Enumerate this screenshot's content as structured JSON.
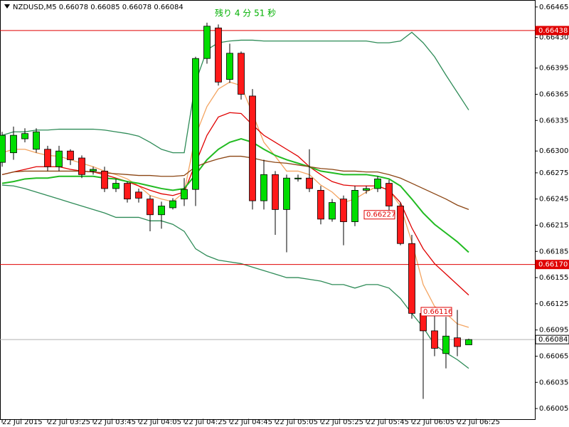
{
  "chart_data": {
    "type": "candlestick",
    "title": "NZDUSD,M5  0.66078 0.66085 0.66078 0.66084",
    "countdown": "残り 4 分 51 秒",
    "categories": [
      "22 Jul 2015",
      null,
      null,
      null,
      "22 Jul 03:25",
      null,
      null,
      null,
      "22 Jul 03:45",
      null,
      null,
      null,
      "22 Jul 04:05",
      null,
      null,
      null,
      "22 Jul 04:25",
      null,
      null,
      null,
      "22 Jul 04:45",
      null,
      null,
      null,
      "22 Jul 05:05",
      null,
      null,
      null,
      "22 Jul 05:25",
      null,
      null,
      null,
      "22 Jul 05:45",
      null,
      null,
      null,
      "22 Jul 06:05",
      null,
      null,
      null,
      "22 Jul 06:25",
      null
    ],
    "open": [
      0.66287,
      0.66298,
      0.66314,
      0.66302,
      0.66302,
      0.66282,
      0.663,
      0.66292,
      0.66277,
      0.66277,
      0.66257,
      0.66263,
      0.66253,
      0.66245,
      0.66227,
      0.66235,
      0.66245,
      0.66256,
      0.66406,
      0.66441,
      0.66382,
      0.66412,
      0.66363,
      0.66243,
      0.66273,
      0.66233,
      0.66268,
      0.66269,
      0.66255,
      0.66222,
      0.66245,
      0.66219,
      0.66255,
      0.66257,
      0.66263,
      0.66237,
      0.66194,
      0.66114,
      0.66094,
      0.66068,
      0.66086,
      0.66078
    ],
    "high": [
      0.66322,
      0.66328,
      0.66326,
      0.66326,
      0.66306,
      0.66306,
      0.66302,
      0.66295,
      0.66282,
      0.66282,
      0.66268,
      0.66265,
      0.66257,
      0.66249,
      0.66242,
      0.66246,
      0.66269,
      0.66408,
      0.66447,
      0.66445,
      0.66423,
      0.66414,
      0.66371,
      0.6629,
      0.66277,
      0.66273,
      0.66273,
      0.66302,
      0.6626,
      0.66245,
      0.66249,
      0.6626,
      0.6626,
      0.66271,
      0.66267,
      0.66241,
      0.66204,
      0.66118,
      0.66114,
      0.6611,
      0.66118,
      0.66085
    ],
    "low": [
      0.66282,
      0.6629,
      0.6631,
      0.66298,
      0.66277,
      0.66277,
      0.66284,
      0.66269,
      0.66273,
      0.66253,
      0.66253,
      0.66241,
      0.66241,
      0.66208,
      0.66211,
      0.66233,
      0.66237,
      0.66237,
      0.664,
      0.66375,
      0.66378,
      0.66359,
      0.66233,
      0.66233,
      0.66204,
      0.66184,
      0.66265,
      0.66253,
      0.66216,
      0.66219,
      0.66192,
      0.66214,
      0.66251,
      0.66253,
      0.66229,
      0.66192,
      0.66108,
      0.66016,
      0.66065,
      0.66051,
      0.66065,
      0.66078
    ],
    "close": [
      0.66318,
      0.66318,
      0.6632,
      0.66322,
      0.66282,
      0.663,
      0.6629,
      0.66273,
      0.66279,
      0.66257,
      0.66263,
      0.66245,
      0.66246,
      0.66227,
      0.66237,
      0.66243,
      0.66256,
      0.66406,
      0.66443,
      0.66379,
      0.66412,
      0.66365,
      0.66243,
      0.66273,
      0.66233,
      0.66269,
      0.66269,
      0.66257,
      0.66222,
      0.66241,
      0.66219,
      0.66255,
      0.66257,
      0.66268,
      0.66237,
      0.66194,
      0.66114,
      0.66094,
      0.66074,
      0.66088,
      0.66076,
      0.66084
    ],
    "up_color": "#00dd00",
    "down_color": "#ff1a1a",
    "lines": [
      {
        "color": "#f4a460",
        "values": [
          0.66298,
          0.66302,
          0.66302,
          0.66298,
          0.66295,
          0.66294,
          0.6629,
          0.66286,
          0.66282,
          0.66277,
          0.66273,
          0.66268,
          0.6626,
          0.66249,
          0.66245,
          0.66242,
          0.66253,
          0.66318,
          0.66351,
          0.66371,
          0.66379,
          0.66375,
          0.66343,
          0.6631,
          0.66294,
          0.66277,
          0.66277,
          0.66273,
          0.66261,
          0.66253,
          0.66241,
          0.66245,
          0.66253,
          0.6626,
          0.66255,
          0.66237,
          0.66196,
          0.66147,
          0.66122,
          0.66114,
          0.66102,
          0.66098
        ]
      },
      {
        "color": "#e00000",
        "values": [
          0.66273,
          0.66276,
          0.66279,
          0.66282,
          0.66282,
          0.66282,
          0.66279,
          0.66277,
          0.66276,
          0.66273,
          0.66269,
          0.66265,
          0.6626,
          0.66255,
          0.66251,
          0.66249,
          0.66253,
          0.66286,
          0.66318,
          0.66339,
          0.66344,
          0.66343,
          0.6633,
          0.66318,
          0.6631,
          0.66302,
          0.66294,
          0.66282,
          0.66273,
          0.66265,
          0.66261,
          0.6626,
          0.6626,
          0.6626,
          0.66255,
          0.66241,
          0.66212,
          0.66188,
          0.66171,
          0.66159,
          0.66147,
          0.66135
        ]
      },
      {
        "color": "#22bb22",
        "values": [
          0.66263,
          0.66265,
          0.66268,
          0.66269,
          0.66269,
          0.66271,
          0.66271,
          0.66271,
          0.66271,
          0.66269,
          0.66268,
          0.66265,
          0.66263,
          0.6626,
          0.66257,
          0.66255,
          0.66257,
          0.66273,
          0.6629,
          0.66302,
          0.6631,
          0.66314,
          0.6631,
          0.66302,
          0.66295,
          0.6629,
          0.66286,
          0.66282,
          0.66277,
          0.66275,
          0.66273,
          0.66273,
          0.66273,
          0.66271,
          0.66268,
          0.6626,
          0.66245,
          0.66229,
          0.66216,
          0.66206,
          0.66196,
          0.66184
        ]
      },
      {
        "color": "#8b4513",
        "values": [
          0.66273,
          0.66276,
          0.66277,
          0.66277,
          0.66277,
          0.66277,
          0.66277,
          0.66277,
          0.66276,
          0.66275,
          0.66274,
          0.66273,
          0.66272,
          0.66272,
          0.66271,
          0.66271,
          0.66272,
          0.66282,
          0.66287,
          0.66291,
          0.66294,
          0.66294,
          0.66292,
          0.66289,
          0.66287,
          0.66286,
          0.66284,
          0.66282,
          0.6628,
          0.66279,
          0.66277,
          0.66277,
          0.66276,
          0.66276,
          0.66273,
          0.66269,
          0.66263,
          0.66257,
          0.66251,
          0.66245,
          0.66238,
          0.66233
        ]
      },
      {
        "color": "#2e8b57",
        "values": [
          0.66318,
          0.66322,
          0.66322,
          0.66324,
          0.66324,
          0.66325,
          0.66325,
          0.66325,
          0.66325,
          0.66324,
          0.66322,
          0.6632,
          0.66317,
          0.6631,
          0.66302,
          0.66298,
          0.66298,
          0.66379,
          0.66416,
          0.66424,
          0.66426,
          0.66427,
          0.66427,
          0.66426,
          0.66426,
          0.66426,
          0.66426,
          0.66426,
          0.66426,
          0.66426,
          0.66426,
          0.66426,
          0.66426,
          0.66424,
          0.66424,
          0.66426,
          0.66436,
          0.66424,
          0.66408,
          0.66387,
          0.66367,
          0.66347
        ]
      },
      {
        "color": "#2e8b57",
        "values": [
          0.66261,
          0.6626,
          0.66257,
          0.66253,
          0.66249,
          0.66245,
          0.66241,
          0.66237,
          0.66233,
          0.66229,
          0.66224,
          0.66224,
          0.66224,
          0.6622,
          0.6622,
          0.66216,
          0.66208,
          0.66188,
          0.6618,
          0.66175,
          0.66173,
          0.66171,
          0.66167,
          0.66163,
          0.66159,
          0.66155,
          0.66155,
          0.66153,
          0.66151,
          0.66147,
          0.66147,
          0.66143,
          0.66147,
          0.66147,
          0.66143,
          0.66131,
          0.66114,
          0.66098,
          0.66078,
          0.66069,
          0.66061,
          0.66051
        ]
      }
    ],
    "hlines": [
      {
        "value": 0.66438,
        "label": "0.66438",
        "color": "#e00000"
      },
      {
        "value": 0.6617,
        "label": "0.66170",
        "color": "#e00000"
      },
      {
        "value": 0.66084,
        "label": "0.66084",
        "color": "#b0b0b0"
      }
    ],
    "price_labels": [
      {
        "index": 32,
        "value": 0.66227,
        "label": "0.66227"
      },
      {
        "index": 37,
        "value": 0.66116,
        "label": "0.66116"
      }
    ],
    "ylim": [
      0.65992,
      0.66473
    ],
    "yticks": [
      0.66465,
      {
        "value": 0.6643,
        "label": "0.66430"
      },
      0.66395,
      0.66365,
      0.66335,
      {
        "value": 0.663,
        "label": "0.66300"
      },
      0.66275,
      0.66245,
      0.66215,
      0.66185,
      0.66155,
      0.66125,
      0.66095,
      0.66065,
      0.66035,
      0.66005
    ]
  }
}
